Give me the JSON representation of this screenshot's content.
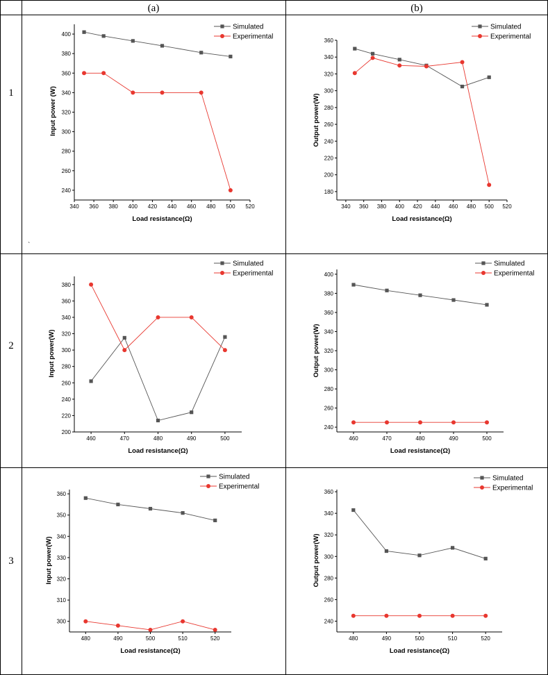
{
  "table": {
    "col_headers": [
      "(a)",
      "(b)"
    ],
    "row_labels": [
      "1",
      "2",
      "3"
    ],
    "stray_mark": "`"
  },
  "colors": {
    "simulated": "#555555",
    "experimental": "#e8372f",
    "grid_line": "#000000"
  },
  "chart_data": [
    {
      "id": "r1a",
      "type": "line",
      "xlabel": "Load resistance(Ω)",
      "ylabel": "Input power (W)",
      "xlim": [
        340,
        520
      ],
      "ylim": [
        230,
        410
      ],
      "xticks": [
        340,
        360,
        380,
        400,
        420,
        440,
        460,
        480,
        500,
        520
      ],
      "yticks": [
        240,
        260,
        280,
        300,
        320,
        340,
        360,
        380,
        400
      ],
      "series": [
        {
          "name": "Simulated",
          "marker": "square",
          "x": [
            350,
            370,
            400,
            430,
            470,
            500
          ],
          "y": [
            402,
            398,
            393,
            388,
            381,
            377
          ]
        },
        {
          "name": "Experimental",
          "marker": "circle",
          "x": [
            350,
            370,
            400,
            430,
            470,
            500
          ],
          "y": [
            360,
            360,
            340,
            340,
            340,
            240
          ]
        }
      ]
    },
    {
      "id": "r1b",
      "type": "line",
      "xlabel": "Load resistance(Ω)",
      "ylabel": "Output power(W)",
      "xlim": [
        330,
        520
      ],
      "ylim": [
        170,
        360
      ],
      "xticks": [
        340,
        360,
        380,
        400,
        420,
        440,
        460,
        480,
        500,
        520
      ],
      "yticks": [
        180,
        200,
        220,
        240,
        260,
        280,
        300,
        320,
        340,
        360
      ],
      "series": [
        {
          "name": "Simulated",
          "marker": "square",
          "x": [
            350,
            370,
            400,
            430,
            470,
            500
          ],
          "y": [
            350,
            344,
            337,
            330,
            305,
            316
          ]
        },
        {
          "name": "Experimental",
          "marker": "circle",
          "x": [
            350,
            370,
            400,
            430,
            470,
            500
          ],
          "y": [
            321,
            339,
            330,
            329,
            334,
            188
          ]
        }
      ]
    },
    {
      "id": "r2a",
      "type": "line",
      "xlabel": "Load resistance(Ω)",
      "ylabel": "Input power(W)",
      "xlim": [
        455,
        505
      ],
      "ylim": [
        200,
        390
      ],
      "xticks": [
        460,
        470,
        480,
        490,
        500
      ],
      "yticks": [
        200,
        220,
        240,
        260,
        280,
        300,
        320,
        340,
        360,
        380
      ],
      "series": [
        {
          "name": "Simulated",
          "marker": "square",
          "x": [
            460,
            470,
            480,
            490,
            500
          ],
          "y": [
            262,
            315,
            214,
            224,
            316
          ]
        },
        {
          "name": "Experimental",
          "marker": "circle",
          "x": [
            460,
            470,
            480,
            490,
            500
          ],
          "y": [
            380,
            300,
            340,
            340,
            300
          ]
        }
      ]
    },
    {
      "id": "r2b",
      "type": "line",
      "xlabel": "Load resistance(Ω)",
      "ylabel": "Output power(W)",
      "xlim": [
        455,
        505
      ],
      "ylim": [
        235,
        405
      ],
      "xticks": [
        460,
        470,
        480,
        490,
        500
      ],
      "yticks": [
        240,
        260,
        280,
        300,
        320,
        340,
        360,
        380,
        400
      ],
      "series": [
        {
          "name": "Simulated",
          "marker": "square",
          "x": [
            460,
            470,
            480,
            490,
            500
          ],
          "y": [
            389,
            383,
            378,
            373,
            368
          ]
        },
        {
          "name": "Experimental",
          "marker": "circle",
          "x": [
            460,
            470,
            480,
            490,
            500
          ],
          "y": [
            245,
            245,
            245,
            245,
            245
          ]
        }
      ]
    },
    {
      "id": "r3a",
      "type": "line",
      "xlabel": "Load resistance(Ω)",
      "ylabel": "Input power(W)",
      "xlim": [
        475,
        525
      ],
      "ylim": [
        295,
        362
      ],
      "xticks": [
        480,
        490,
        500,
        510,
        520
      ],
      "yticks": [
        300,
        310,
        320,
        330,
        340,
        350,
        360
      ],
      "series": [
        {
          "name": "Simulated",
          "marker": "square",
          "x": [
            480,
            490,
            500,
            510,
            520
          ],
          "y": [
            358,
            355,
            353,
            351,
            347.5
          ]
        },
        {
          "name": "Experimental",
          "marker": "circle",
          "x": [
            480,
            490,
            500,
            510,
            520
          ],
          "y": [
            300,
            298,
            296,
            300,
            296
          ]
        }
      ]
    },
    {
      "id": "r3b",
      "type": "line",
      "xlabel": "Load resistance(Ω)",
      "ylabel": "Output power(W)",
      "xlim": [
        475,
        525
      ],
      "ylim": [
        230,
        362
      ],
      "xticks": [
        480,
        490,
        500,
        510,
        520
      ],
      "yticks": [
        240,
        260,
        280,
        300,
        320,
        340,
        360
      ],
      "series": [
        {
          "name": "Simulated",
          "marker": "square",
          "x": [
            480,
            490,
            500,
            510,
            520
          ],
          "y": [
            343,
            305,
            301,
            308,
            298
          ]
        },
        {
          "name": "Experimental",
          "marker": "circle",
          "x": [
            480,
            490,
            500,
            510,
            520
          ],
          "y": [
            245,
            245,
            245,
            245,
            245
          ]
        }
      ]
    }
  ]
}
